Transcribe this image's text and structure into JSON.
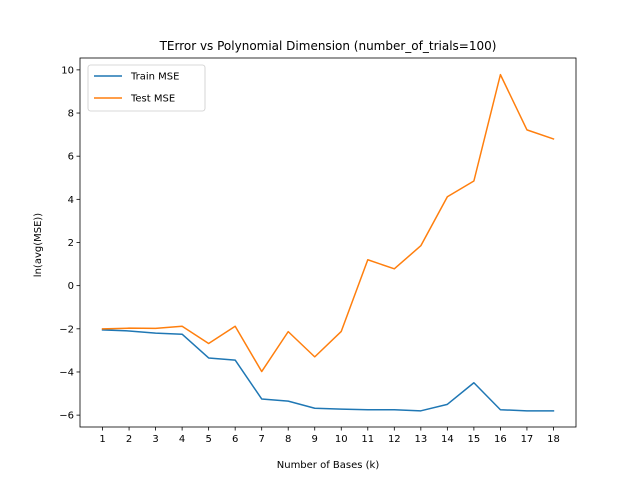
{
  "chart_data": {
    "type": "line",
    "title": "TError vs Polynomial Dimension (number_of_trials=100)",
    "xlabel": "Number of Bases (k)",
    "ylabel": "ln(avg(MSE))",
    "x": [
      1,
      2,
      3,
      4,
      5,
      6,
      7,
      8,
      9,
      10,
      11,
      12,
      13,
      14,
      15,
      16,
      17,
      18
    ],
    "xlim": [
      0.15,
      18.85
    ],
    "ylim": [
      -6.55,
      10.55
    ],
    "yticks": [
      -6,
      -4,
      -2,
      0,
      2,
      4,
      6,
      8,
      10
    ],
    "grid": false,
    "legend_position": "upper-left",
    "series": [
      {
        "name": "Train MSE",
        "color": "#1f77b4",
        "values": [
          -2.05,
          -2.1,
          -2.2,
          -2.25,
          -3.35,
          -3.45,
          -5.25,
          -5.35,
          -5.68,
          -5.72,
          -5.75,
          -5.75,
          -5.8,
          -5.5,
          -4.5,
          -5.75,
          -5.8,
          -5.8
        ]
      },
      {
        "name": "Test MSE",
        "color": "#ff7f0e",
        "values": [
          -2.0,
          -1.97,
          -1.98,
          -1.88,
          -2.68,
          -1.88,
          -3.98,
          -2.13,
          -3.3,
          -2.12,
          1.2,
          0.78,
          1.85,
          4.12,
          4.85,
          9.78,
          7.22,
          6.8
        ]
      }
    ]
  }
}
